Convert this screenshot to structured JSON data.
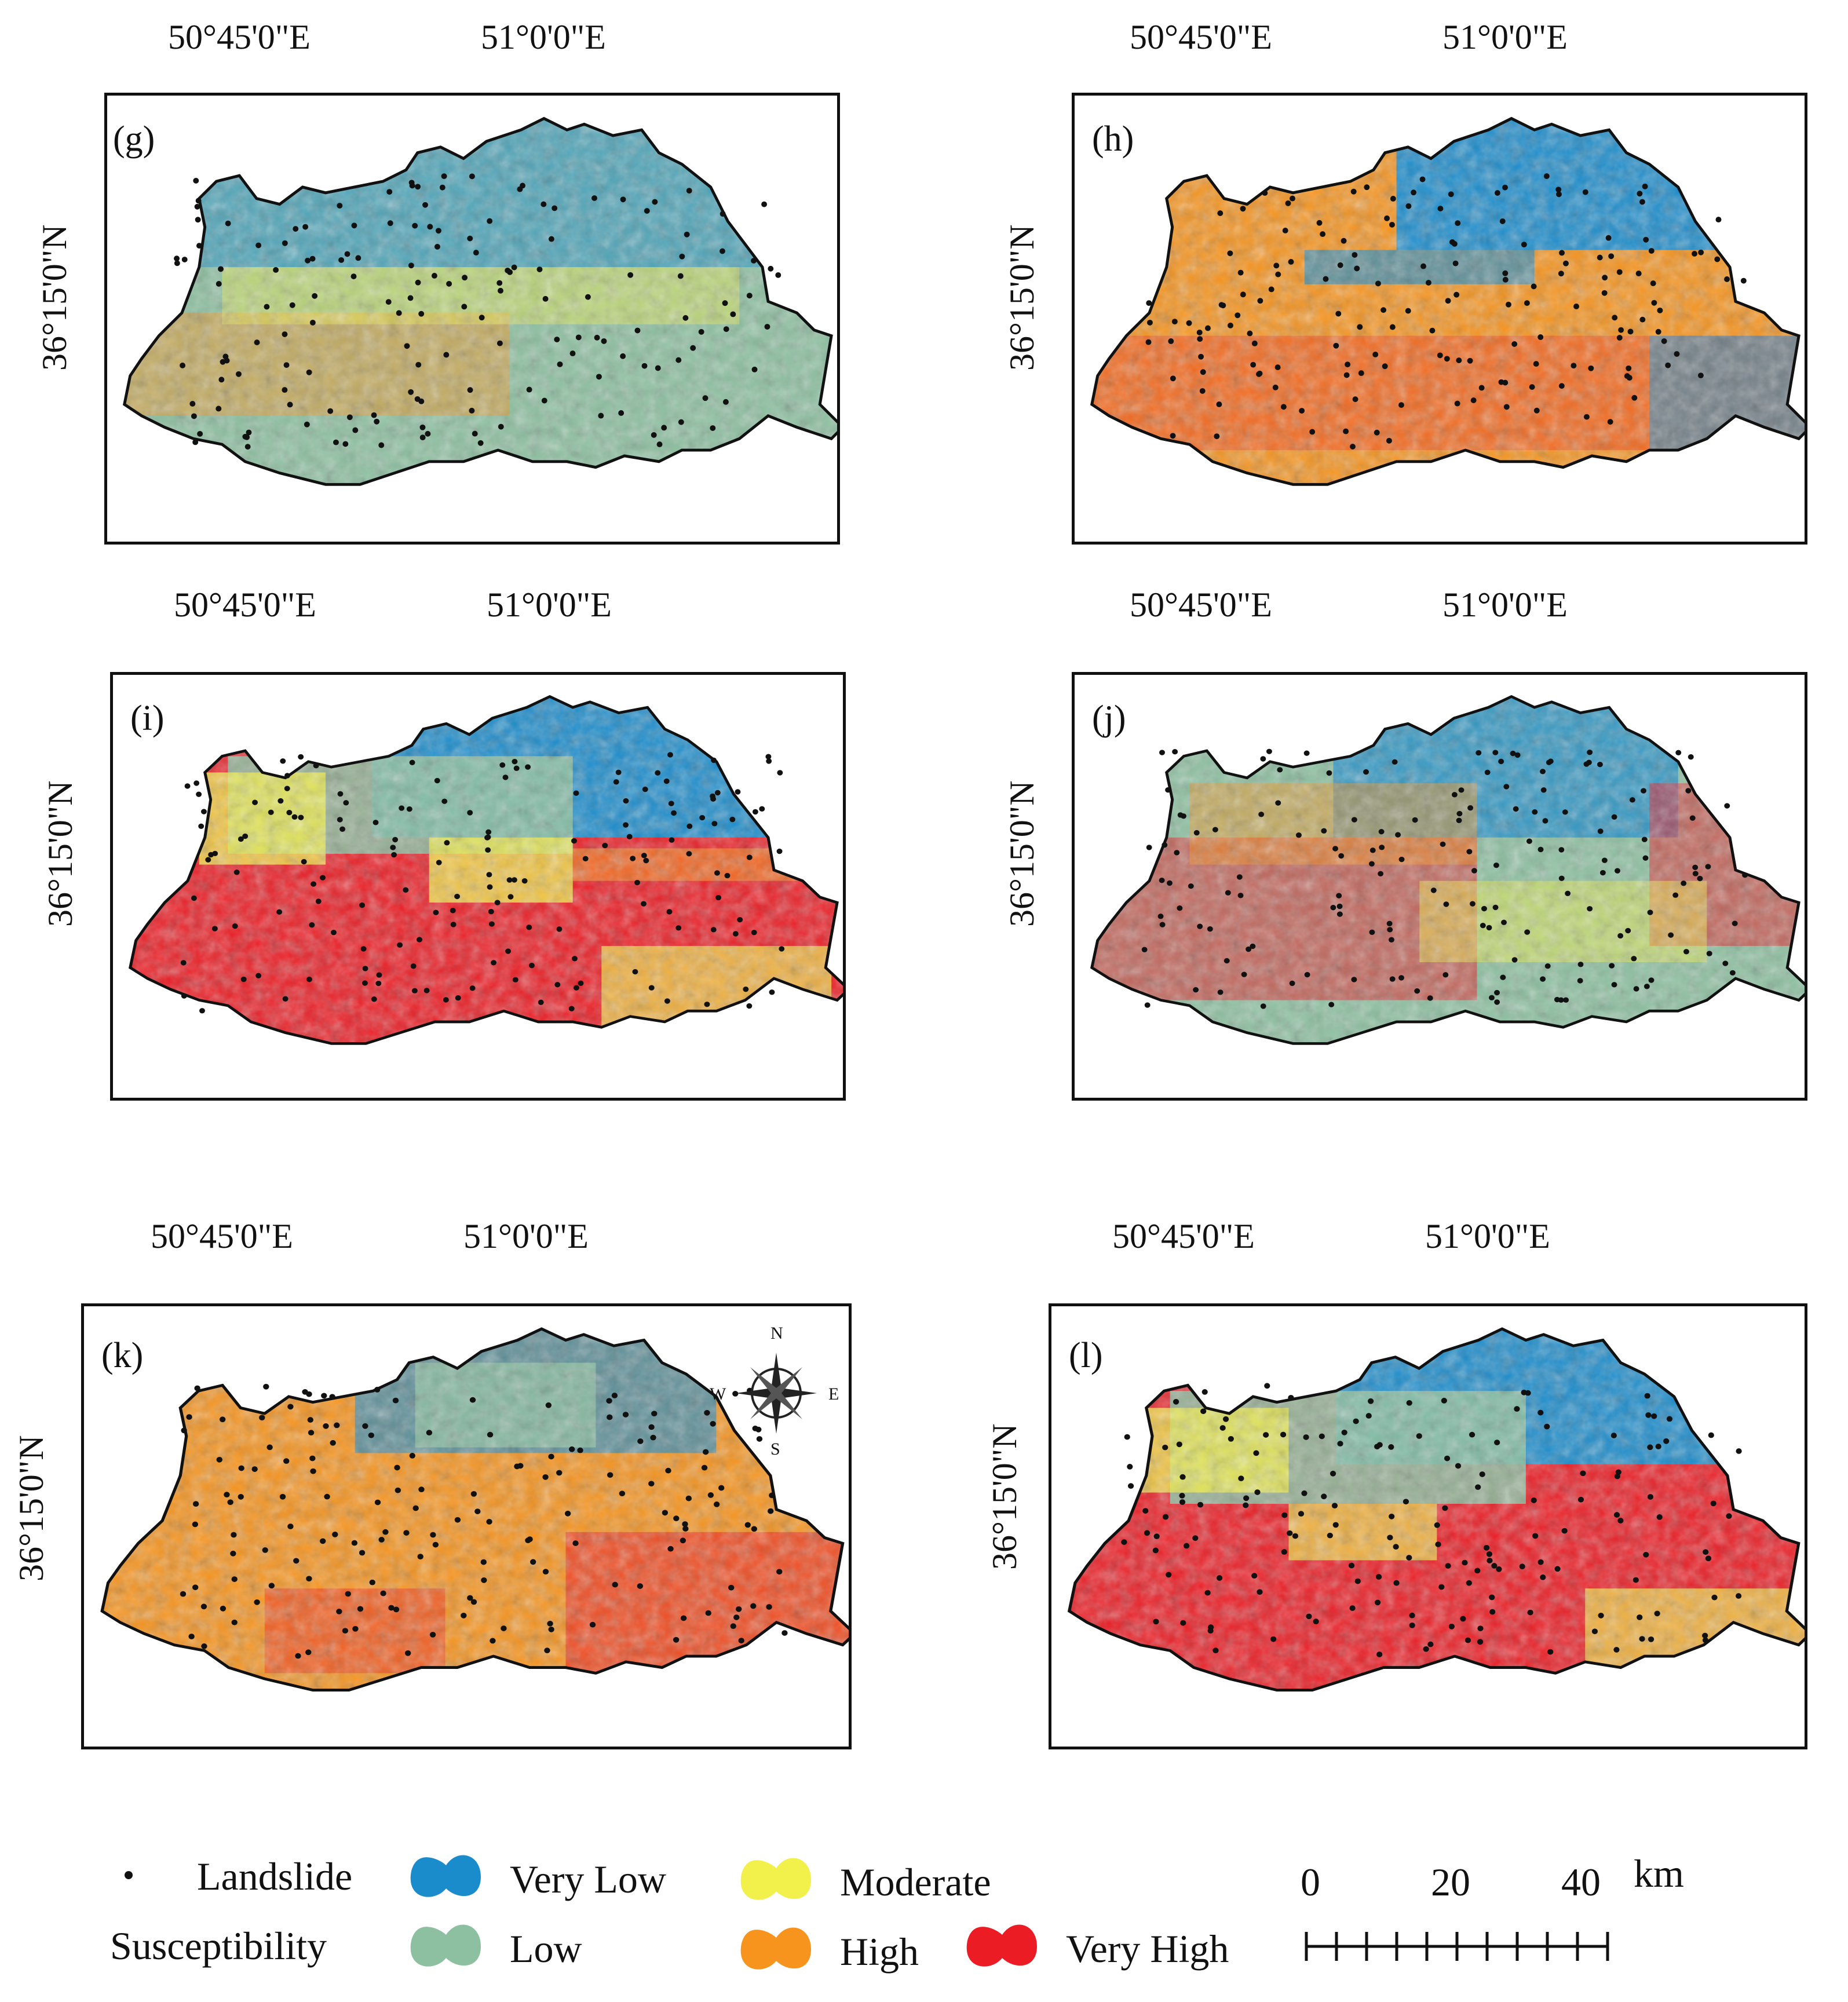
{
  "lon_labels": [
    "50°45'0\"E",
    "51°0'0\"E"
  ],
  "lat_label": "36°15'0\"N",
  "panels": [
    {
      "id": "g",
      "label": "(g)"
    },
    {
      "id": "h",
      "label": "(h)"
    },
    {
      "id": "i",
      "label": "(i)"
    },
    {
      "id": "j",
      "label": "(j)"
    },
    {
      "id": "k",
      "label": "(k)"
    },
    {
      "id": "l",
      "label": "(l)"
    }
  ],
  "compass": {
    "n": "N",
    "s": "S",
    "e": "E",
    "w": "W"
  },
  "legend": {
    "landslide": "Landslide",
    "title": "Susceptibility",
    "classes": [
      {
        "label": "Very Low",
        "color": "#1a8ccc"
      },
      {
        "label": "Low",
        "color": "#8cc0a0"
      },
      {
        "label": "Moderate",
        "color": "#f2f04a"
      },
      {
        "label": "High",
        "color": "#f7941d"
      },
      {
        "label": "Very High",
        "color": "#ec1c24"
      }
    ]
  },
  "scale_bar": {
    "ticks": [
      "0",
      "20",
      "40"
    ],
    "unit": "km"
  }
}
